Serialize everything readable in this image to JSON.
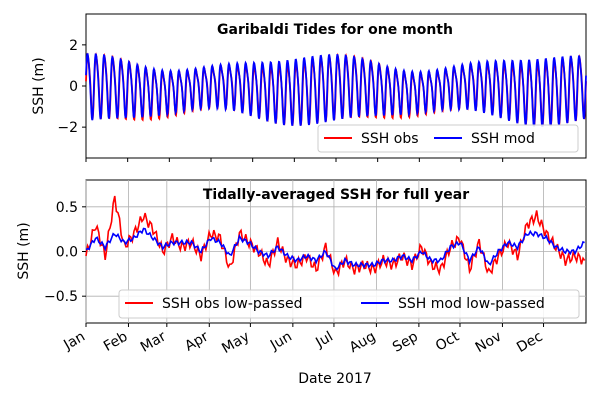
{
  "chart_data": [
    {
      "type": "line",
      "title": "Garibaldi Tides for one month",
      "ylabel": "SSH (m)",
      "xlabel": "",
      "ylim": [
        -3.5,
        3.5
      ],
      "yticks": [
        -2,
        0,
        2
      ],
      "grid": false,
      "legend": {
        "placement": "bottom-right",
        "columns": 2
      },
      "x_note": "hourly samples over one month (~60 tidal cycles)",
      "series": [
        {
          "name": "SSH obs",
          "color": "#ff0000",
          "tide": {
            "cycles": 60,
            "amplitude": [
              0.9,
              1.5
            ],
            "offset_range": [
              -0.3,
              0.1
            ]
          }
        },
        {
          "name": "SSH mod",
          "color": "#0000ff",
          "tide": {
            "cycles": 60,
            "amplitude": [
              0.9,
              1.6
            ],
            "offset_range": [
              -0.2,
              0.1
            ]
          }
        }
      ]
    },
    {
      "type": "line",
      "title": "Tidally-averaged SSH for full year",
      "ylabel": "SSH (m)",
      "xlabel": "Date 2017",
      "ylim": [
        -0.8,
        0.8
      ],
      "yticks": [
        -0.5,
        0.0,
        0.5
      ],
      "yticklabels": [
        "−0.5",
        "0.0",
        "0.5"
      ],
      "xticklabels": [
        "Jan",
        "Feb",
        "Mar",
        "Apr",
        "May",
        "Jun",
        "Jul",
        "Aug",
        "Sep",
        "Oct",
        "Nov",
        "Dec"
      ],
      "grid": true,
      "legend": {
        "placement": "bottom",
        "columns": 2
      },
      "x": [
        "2017-01-01",
        "2017-01-08",
        "2017-01-15",
        "2017-01-22",
        "2017-01-29",
        "2017-02-05",
        "2017-02-12",
        "2017-02-19",
        "2017-02-26",
        "2017-03-05",
        "2017-03-12",
        "2017-03-19",
        "2017-03-26",
        "2017-04-02",
        "2017-04-09",
        "2017-04-16",
        "2017-04-23",
        "2017-04-30",
        "2017-05-07",
        "2017-05-14",
        "2017-05-21",
        "2017-05-28",
        "2017-06-04",
        "2017-06-11",
        "2017-06-18",
        "2017-06-25",
        "2017-07-02",
        "2017-07-09",
        "2017-07-16",
        "2017-07-23",
        "2017-07-30",
        "2017-08-06",
        "2017-08-13",
        "2017-08-20",
        "2017-08-27",
        "2017-09-03",
        "2017-09-10",
        "2017-09-17",
        "2017-09-24",
        "2017-10-01",
        "2017-10-08",
        "2017-10-15",
        "2017-10-22",
        "2017-10-29",
        "2017-11-05",
        "2017-11-12",
        "2017-11-19",
        "2017-11-26",
        "2017-12-03",
        "2017-12-10",
        "2017-12-17",
        "2017-12-24",
        "2017-12-31"
      ],
      "series": [
        {
          "name": "SSH obs low-passed",
          "color": "#ff0000",
          "values": [
            -0.05,
            0.3,
            -0.05,
            0.6,
            0.05,
            0.2,
            0.4,
            0.25,
            0.0,
            0.15,
            0.05,
            0.1,
            -0.05,
            0.2,
            0.15,
            -0.2,
            0.2,
            0.1,
            0.0,
            -0.15,
            0.1,
            -0.1,
            -0.15,
            -0.05,
            -0.2,
            0.05,
            -0.25,
            -0.1,
            -0.2,
            -0.15,
            -0.2,
            -0.1,
            -0.15,
            -0.05,
            -0.15,
            0.05,
            -0.15,
            -0.2,
            0.05,
            0.15,
            -0.2,
            0.1,
            -0.25,
            -0.05,
            0.1,
            -0.05,
            0.3,
            0.4,
            0.2,
            0.05,
            -0.1,
            -0.05,
            -0.1
          ]
        },
        {
          "name": "SSH mod low-passed",
          "color": "#0000ff",
          "values": [
            0.0,
            0.15,
            0.05,
            0.2,
            0.1,
            0.15,
            0.25,
            0.15,
            0.05,
            0.1,
            0.1,
            0.1,
            0.0,
            0.15,
            0.1,
            -0.05,
            0.15,
            0.1,
            0.0,
            -0.05,
            0.05,
            -0.05,
            -0.1,
            -0.05,
            -0.1,
            0.0,
            -0.2,
            -0.1,
            -0.15,
            -0.15,
            -0.15,
            -0.1,
            -0.1,
            -0.05,
            -0.1,
            0.0,
            -0.1,
            -0.1,
            0.05,
            0.1,
            -0.1,
            0.05,
            -0.15,
            0.0,
            0.1,
            0.05,
            0.2,
            0.2,
            0.15,
            0.05,
            0.0,
            0.0,
            0.1
          ]
        }
      ]
    }
  ]
}
